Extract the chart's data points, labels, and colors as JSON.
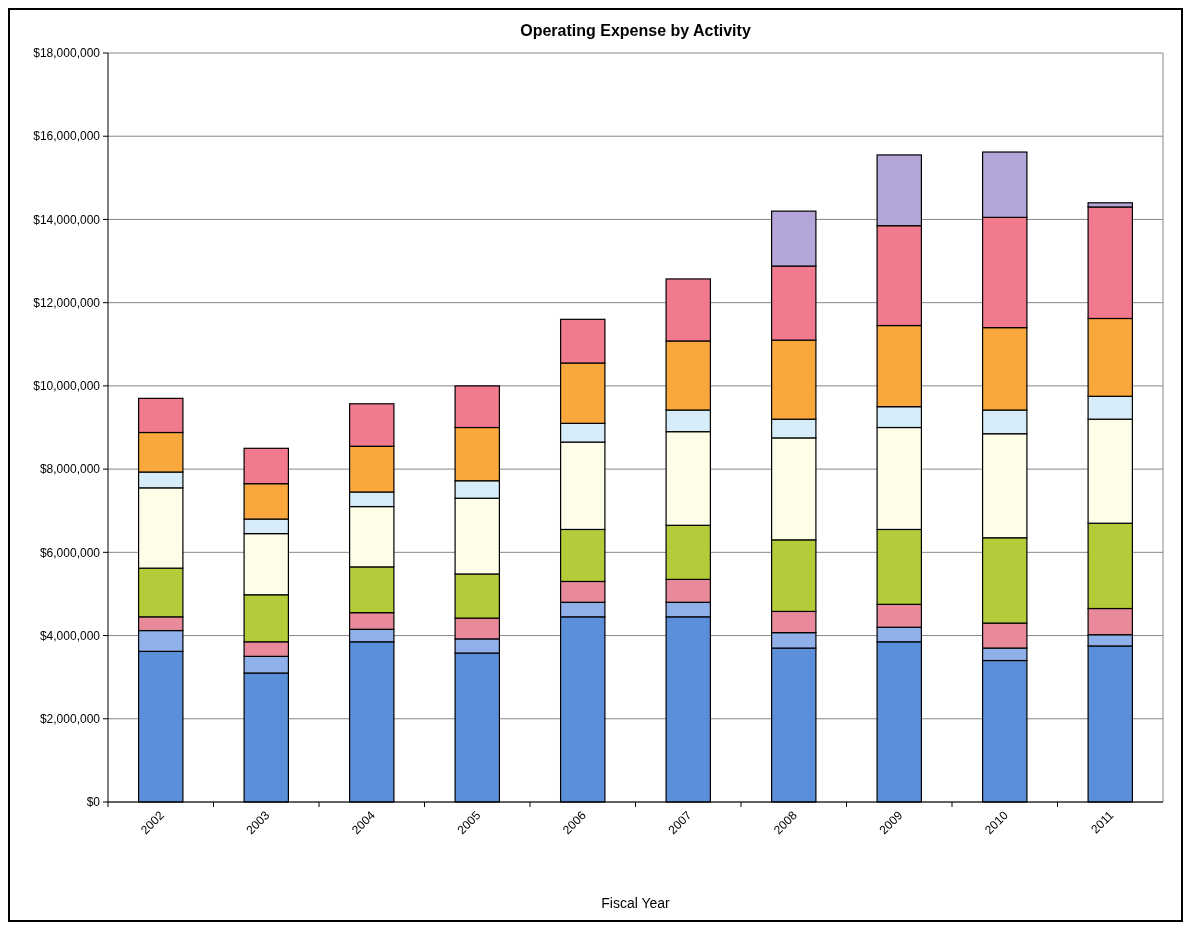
{
  "chart_data": {
    "type": "bar",
    "title": "Operating Expense by Activity",
    "xlabel": "Fiscal Year",
    "categories": [
      "2002",
      "2003",
      "2004",
      "2005",
      "2006",
      "2007",
      "2008",
      "2009",
      "2010",
      "2011"
    ],
    "stacked": true,
    "grid": "y",
    "ylim": [
      0,
      18000000
    ],
    "yticks": [
      {
        "value": 0,
        "label": "$0"
      },
      {
        "value": 2000000,
        "label": "$2,000,000"
      },
      {
        "value": 4000000,
        "label": "$4,000,000"
      },
      {
        "value": 6000000,
        "label": "$6,000,000"
      },
      {
        "value": 8000000,
        "label": "$8,000,000"
      },
      {
        "value": 10000000,
        "label": "$10,000,000"
      },
      {
        "value": 12000000,
        "label": "$12,000,000"
      },
      {
        "value": 14000000,
        "label": "$14,000,000"
      },
      {
        "value": 16000000,
        "label": "$16,000,000"
      },
      {
        "value": 18000000,
        "label": "$18,000,000"
      }
    ],
    "series": [
      {
        "color": "#5b8fd9",
        "values": [
          3620000,
          3100000,
          3850000,
          3580000,
          4450000,
          4450000,
          3700000,
          3850000,
          3400000,
          3750000
        ]
      },
      {
        "color": "#8fb0e8",
        "values": [
          500000,
          400000,
          300000,
          340000,
          350000,
          350000,
          370000,
          350000,
          300000,
          270000
        ]
      },
      {
        "color": "#e88a9a",
        "values": [
          330000,
          350000,
          400000,
          500000,
          500000,
          550000,
          510000,
          550000,
          600000,
          630000
        ]
      },
      {
        "color": "#b5cc3a",
        "values": [
          1170000,
          1130000,
          1100000,
          1060000,
          1250000,
          1300000,
          1720000,
          1800000,
          2050000,
          2050000
        ]
      },
      {
        "color": "#fdfde8",
        "values": [
          1930000,
          1470000,
          1450000,
          1820000,
          2100000,
          2250000,
          2450000,
          2450000,
          2500000,
          2500000
        ]
      },
      {
        "color": "#d6ecf8",
        "values": [
          380000,
          350000,
          350000,
          420000,
          450000,
          520000,
          450000,
          500000,
          570000,
          550000
        ]
      },
      {
        "color": "#f8a83c",
        "values": [
          950000,
          850000,
          1100000,
          1280000,
          1450000,
          1660000,
          1900000,
          1950000,
          1980000,
          1870000
        ]
      },
      {
        "color": "#f27a8e",
        "values": [
          820000,
          850000,
          1020000,
          1000000,
          1050000,
          1490000,
          1780000,
          2400000,
          2650000,
          2680000
        ]
      },
      {
        "color": "#b4a6d8",
        "values": [
          null,
          null,
          null,
          null,
          null,
          null,
          1320000,
          1700000,
          1570000,
          100000
        ]
      }
    ]
  }
}
